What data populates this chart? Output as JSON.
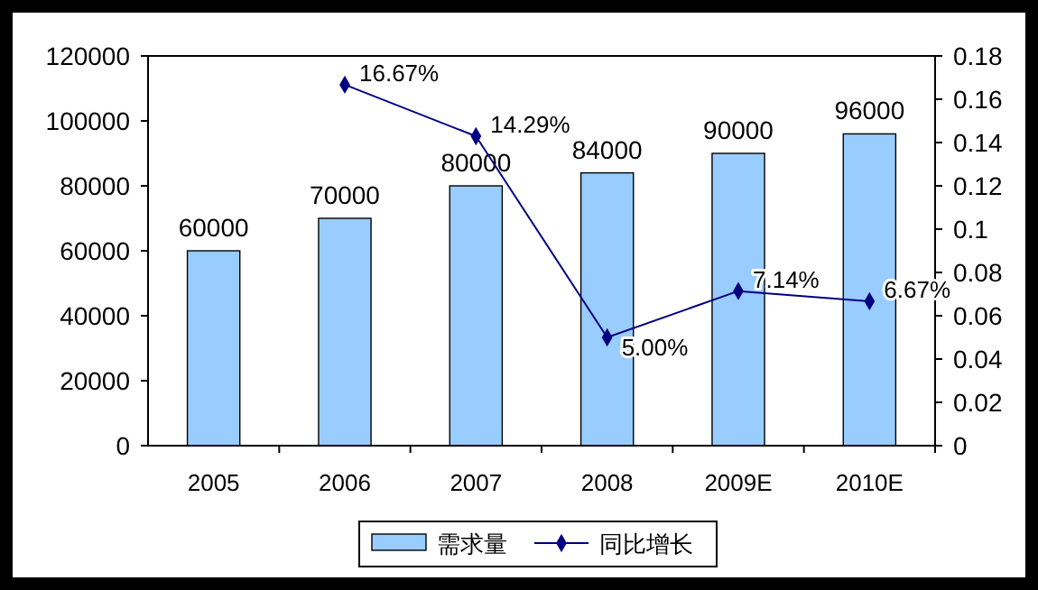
{
  "chart_data": {
    "type": "bar",
    "categories": [
      "2005",
      "2006",
      "2007",
      "2008",
      "2009E",
      "2010E"
    ],
    "series": [
      {
        "name": "需求量",
        "color": "#99ccff",
        "values": [
          60000,
          70000,
          80000,
          84000,
          90000,
          96000
        ],
        "value_labels": [
          "60000",
          "70000",
          "80000",
          "84000",
          "90000",
          "96000"
        ]
      },
      {
        "name": "同比增长",
        "type": "line",
        "axis": "y2",
        "color": "#000080",
        "marker": "diamond",
        "values": [
          null,
          0.1667,
          0.1429,
          0.05,
          0.0714,
          0.0667
        ],
        "value_labels": [
          null,
          "16.67%",
          "14.29%",
          "5.00%",
          "7.14%",
          "6.67%"
        ]
      }
    ],
    "ylim": [
      0,
      120000
    ],
    "yticks": [
      0,
      20000,
      40000,
      60000,
      80000,
      100000,
      120000
    ],
    "y2lim": [
      0,
      0.18
    ],
    "y2ticks": [
      0,
      0.02,
      0.04,
      0.06,
      0.08,
      0.1,
      0.12,
      0.14,
      0.16,
      0.18
    ],
    "legend": "bottom",
    "grid": false
  }
}
